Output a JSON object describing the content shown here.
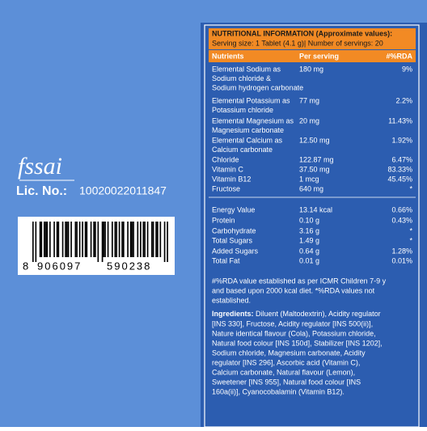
{
  "logo": "fssai",
  "license": {
    "label": "Lic. No.:",
    "number": "10020022011847"
  },
  "barcode": {
    "digits": [
      "8",
      "906097",
      "590238"
    ]
  },
  "panel": {
    "title": "NUTRITIONAL INFORMATION (Approximate values):",
    "serving": "Serving size: 1 Tablet (4.1 g)| Number of servings: 20",
    "columns": [
      "Nutrients",
      "Per serving",
      "#%RDA"
    ],
    "rows": [
      {
        "name": [
          "Elemental Sodium as",
          "Sodium chloride &",
          "Sodium hydrogen carbonate"
        ],
        "amount": "180 mg",
        "rda": "9%"
      },
      {
        "name": [
          "Elemental Potassium as",
          "Potassium chloride"
        ],
        "amount": "77 mg",
        "rda": "2.2%"
      },
      {
        "name": [
          "Elemental Magnesium as",
          "Magnesium carbonate"
        ],
        "amount": "20 mg",
        "rda": "11.43%"
      },
      {
        "name": [
          "Elemental Calcium as",
          "Calcium carbonate"
        ],
        "amount": "12.50 mg",
        "rda": "1.92%"
      },
      {
        "name": [
          "Chloride"
        ],
        "amount": "122.87 mg",
        "rda": "6.47%"
      },
      {
        "name": [
          "Vitamin C"
        ],
        "amount": "37.50 mg",
        "rda": "83.33%"
      },
      {
        "name": [
          "Vitamin B12"
        ],
        "amount": "1 mcg",
        "rda": "45.45%"
      },
      {
        "name": [
          "Fructose"
        ],
        "amount": "640 mg",
        "rda": "*"
      }
    ],
    "energy_rows": [
      {
        "name": [
          "Energy Value"
        ],
        "amount": "13.14 kcal",
        "rda": "0.66%"
      },
      {
        "name": [
          "Protein"
        ],
        "amount": "0.10 g",
        "rda": "0.43%"
      },
      {
        "name": [
          "Carbohydrate"
        ],
        "amount": "3.16 g",
        "rda": "*"
      },
      {
        "name": [
          "Total Sugars"
        ],
        "amount": "1.49 g",
        "rda": "*"
      },
      {
        "name": [
          "Added Sugars"
        ],
        "amount": "0.64 g",
        "rda": "1.28%"
      },
      {
        "name": [
          "Total Fat"
        ],
        "amount": "0.01 g",
        "rda": "0.01%"
      }
    ],
    "footnote": [
      "#%RDA value established as per ICMR Children 7-9 y",
      "and based upon 2000 kcal diet. *%RDA values not",
      "established."
    ],
    "ingredients": {
      "label": "Ingredients:",
      "lines": [
        " Diluent (Maltodextrin), Acidity regulator",
        "[INS 330], Fructose, Acidity regulator [INS 500(ii)],",
        "Nature identical flavour (Cola), Potassium chloride,",
        "Natural food colour [INS 150d], Stabilizer [INS 1202],",
        "Sodium chloride, Magnesium carbonate, Acidity",
        "regulator [INS 296], Ascorbic acid (Vitamin C),",
        "Calcium carbonate, Natural flavour (Lemon),",
        "Sweetener [INS 955], Natural food colour [INS",
        "160a(ii)], Cyanocobalamin (Vitamin B12)."
      ]
    }
  }
}
